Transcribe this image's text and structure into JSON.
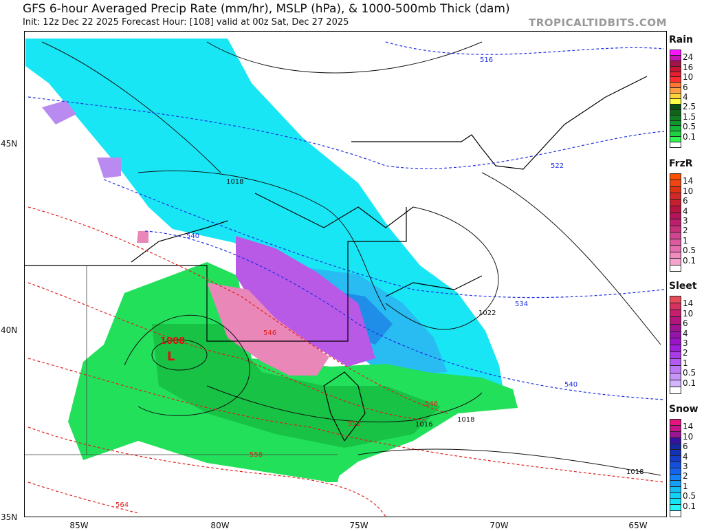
{
  "header": {
    "title": "GFS 6-hour Averaged Precip Rate (mm/hr), MSLP (hPa), & 1000-500mb Thick (dam)",
    "subtitle": "Init: 12z Dec 22 2025   Forecast Hour: [108]   valid at 00z Sat, Dec 27 2025",
    "brand": "TROPICALTIDBITS.COM"
  },
  "map": {
    "lat_labels": [
      "45N",
      "40N",
      "35N"
    ],
    "lon_labels": [
      "85W",
      "80W",
      "75W",
      "70W",
      "65W"
    ],
    "low_center": {
      "symbol": "L",
      "pressure": "1008"
    },
    "isobar_labels": [
      "1018",
      "1022",
      "1016",
      "1018",
      "1018"
    ],
    "thickness_labels": [
      "516",
      "522",
      "534",
      "540",
      "540",
      "546",
      "546",
      "552",
      "558",
      "564"
    ],
    "colors": {
      "snow": "#18e6f5",
      "snow_heavy": "#1aa8f0",
      "rain": "#22e05a",
      "rain_heavy": "#14b93c",
      "sleet": "#b95ae6",
      "frzr": "#e887b8",
      "thickness_cold": "#2030e0",
      "thickness_warm": "#e02020"
    }
  },
  "legends": [
    {
      "title": "Rain",
      "labels": [
        "24",
        "16",
        "10",
        "6",
        "4",
        "2.5",
        "1.5",
        "0.5",
        "0.1"
      ],
      "colors": [
        "#ff14ff",
        "#c814b4",
        "#a01446",
        "#c81432",
        "#e61e32",
        "#ff2d2d",
        "#ff7832",
        "#ffa046",
        "#ffd23c",
        "#ffff46",
        "#0a5014",
        "#0f6419",
        "#0f7d23",
        "#0f962d",
        "#14b437",
        "#1ed241",
        "#32f550",
        "#ffffff"
      ]
    },
    {
      "title": "FrzR",
      "labels": [
        "14",
        "10",
        "6",
        "4",
        "3",
        "2",
        "1",
        "0.5",
        "0.1"
      ],
      "colors": [
        "#ff5000",
        "#f04614",
        "#e03214",
        "#d22828",
        "#c81e32",
        "#b91441",
        "#b4145a",
        "#be1e6e",
        "#c8327d",
        "#d24691",
        "#dc5aa0",
        "#e66eaf",
        "#f08cbe",
        "#f5a5cd",
        "#ffffff"
      ]
    },
    {
      "title": "Sleet",
      "labels": [
        "14",
        "10",
        "6",
        "4",
        "3",
        "2",
        "1",
        "0.5",
        "0.1"
      ],
      "colors": [
        "#e64b5a",
        "#d7325f",
        "#c81e6e",
        "#b4147d",
        "#a01491",
        "#9614aa",
        "#9a14c8",
        "#a01edc",
        "#aa3ce6",
        "#b45af0",
        "#be78f5",
        "#c896fa",
        "#d2b4ff",
        "#ffffff"
      ]
    },
    {
      "title": "Snow",
      "labels": [
        "14",
        "10",
        "6",
        "4",
        "3",
        "2",
        "1",
        "0.5",
        "0.1"
      ],
      "colors": [
        "#e6147d",
        "#c8148c",
        "#9b1496",
        "#3214a0",
        "#1428a0",
        "#1432b4",
        "#143cc8",
        "#1450dc",
        "#1464f0",
        "#1482fa",
        "#14a0fa",
        "#14bef5",
        "#14d2f5",
        "#14e6f5",
        "#28f5f5",
        "#ffffff"
      ]
    }
  ]
}
